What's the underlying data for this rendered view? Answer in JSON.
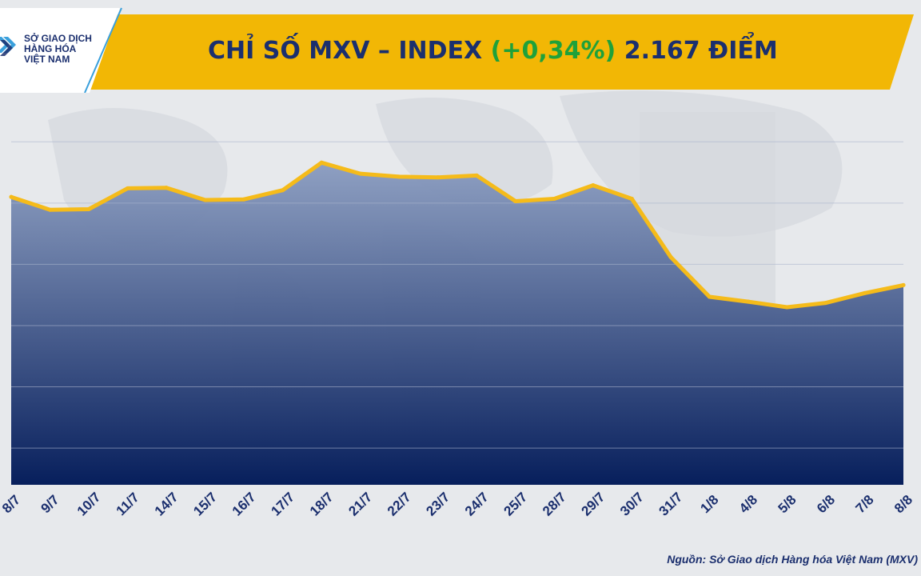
{
  "header": {
    "logo_lines": [
      "SỞ GIAO DỊCH",
      "HÀNG HÓA",
      "VIỆT NAM"
    ],
    "title_prefix": "CHỈ SỐ MXV – INDEX",
    "title_change": "(+0,34%)",
    "title_value": "2.167 ĐIỂM"
  },
  "source_note": "Nguồn: Sở Giao dịch Hàng hóa Việt Nam (MXV)",
  "colors": {
    "banner": "#f2b705",
    "title": "#1b2f6e",
    "change_positive": "#1fa13a",
    "line": "#f5bb1a",
    "area_top": "#8a9cc0",
    "area_bottom": "#071f5c"
  },
  "chart_data": {
    "type": "area",
    "x": [
      "8/7",
      "9/7",
      "10/7",
      "11/7",
      "14/7",
      "15/7",
      "16/7",
      "17/7",
      "18/7",
      "21/7",
      "22/7",
      "23/7",
      "24/7",
      "25/7",
      "28/7",
      "29/7",
      "30/7",
      "31/7",
      "1/8",
      "4/8",
      "5/8",
      "6/8",
      "7/8",
      "8/8"
    ],
    "y": [
      310,
      289,
      290,
      324,
      325,
      305,
      306,
      321,
      366,
      348,
      343,
      342,
      345,
      303,
      307,
      329,
      307,
      212,
      147,
      139,
      130,
      137,
      153,
      166
    ],
    "y_units": "relative index level (unlabeled axis)",
    "ylim": [
      -160,
      480
    ],
    "grid": "horizontal",
    "legend": "none"
  }
}
